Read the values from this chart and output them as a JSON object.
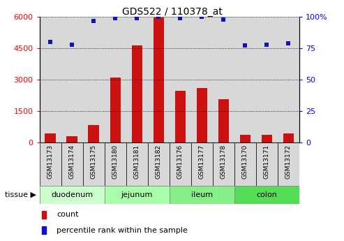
{
  "title": "GDS522 / 110378_at",
  "samples": [
    "GSM13173",
    "GSM13174",
    "GSM13175",
    "GSM13180",
    "GSM13181",
    "GSM13182",
    "GSM13176",
    "GSM13177",
    "GSM13178",
    "GSM13170",
    "GSM13171",
    "GSM13172"
  ],
  "counts": [
    420,
    280,
    820,
    3100,
    4620,
    5980,
    2450,
    2600,
    2050,
    360,
    360,
    420
  ],
  "percentiles": [
    80,
    78,
    97,
    99,
    99,
    100,
    99,
    100,
    98,
    77,
    78,
    79
  ],
  "tissues": [
    {
      "name": "duodenum",
      "start": 0,
      "end": 3,
      "color": "#ccffcc"
    },
    {
      "name": "jejunum",
      "start": 3,
      "end": 6,
      "color": "#aaffaa"
    },
    {
      "name": "ileum",
      "start": 6,
      "end": 9,
      "color": "#88ee88"
    },
    {
      "name": "colon",
      "start": 9,
      "end": 12,
      "color": "#55dd55"
    }
  ],
  "ylim_left": [
    0,
    6000
  ],
  "ylim_right": [
    0,
    100
  ],
  "yticks_left": [
    0,
    1500,
    3000,
    4500,
    6000
  ],
  "yticks_right": [
    0,
    25,
    50,
    75,
    100
  ],
  "bar_color": "#cc1111",
  "dot_color": "#1111cc",
  "col_bg_color": "#d8d8d8"
}
